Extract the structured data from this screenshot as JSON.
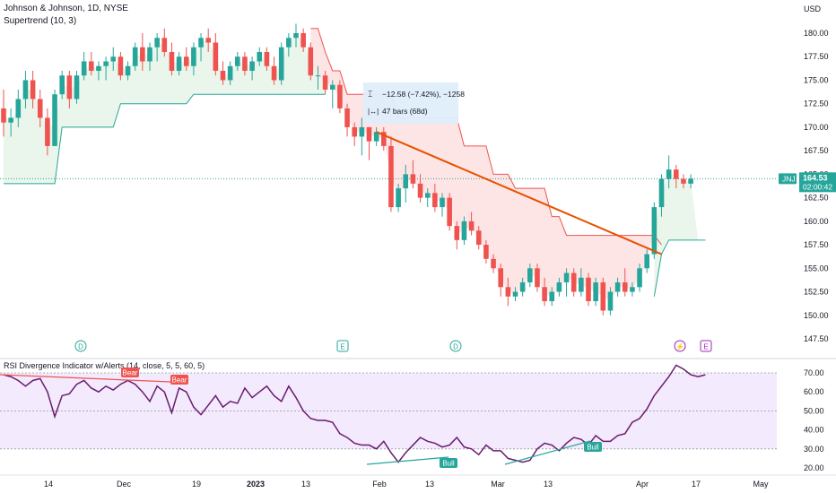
{
  "header": {
    "symbol_line": "Johnson & Johnson, 1D, NYSE",
    "indicator_line": "Supertrend (10, 3)"
  },
  "price_axis": {
    "currency": "USD",
    "ticks": [
      "180.00",
      "177.50",
      "175.00",
      "172.50",
      "170.00",
      "167.50",
      "165.00",
      "162.50",
      "160.00",
      "157.50",
      "155.00",
      "152.50",
      "150.00",
      "147.50"
    ],
    "tick_values": [
      180,
      177.5,
      175,
      172.5,
      170,
      167.5,
      165,
      162.5,
      160,
      157.5,
      155,
      152.5,
      150,
      147.5
    ]
  },
  "last_price": {
    "ticker": "JNJ",
    "price": "164.53",
    "countdown": "02:00:42",
    "value": 164.53
  },
  "measure_tool": {
    "change": "−12.58 (−7.42%), −1258",
    "bars": "47 bars (68d)"
  },
  "events": [
    {
      "type": "dividend",
      "glyph": "D"
    },
    {
      "type": "earnings",
      "glyph": "E"
    },
    {
      "type": "dividend",
      "glyph": "D"
    },
    {
      "type": "split",
      "glyph": "⚡"
    },
    {
      "type": "earnings",
      "glyph": "E"
    }
  ],
  "rsi_panel": {
    "title": "RSI Divergence Indicator w/Alerts (14, close, 5, 5, 60, 5)",
    "ticks": [
      "70.00",
      "60.00",
      "50.00",
      "40.00",
      "30.00",
      "20.00"
    ],
    "tick_values": [
      70,
      60,
      50,
      40,
      30,
      20
    ],
    "labels": [
      {
        "text": "Bear",
        "kind": "bear"
      },
      {
        "text": "Bear",
        "kind": "bear"
      },
      {
        "text": "Bull",
        "kind": "bull"
      },
      {
        "text": "Bull",
        "kind": "bull"
      }
    ]
  },
  "time_axis": {
    "labels": [
      "14",
      "Dec",
      "19",
      "2023",
      "13",
      "Feb",
      "13",
      "Mar",
      "13",
      "Apr",
      "17",
      "May"
    ]
  },
  "colors": {
    "up": "#26a69a",
    "down": "#ef5350",
    "trendline": "#e65100",
    "rsi_line": "#6a1b6e",
    "rsi_band": "#ead9fb",
    "supertrend_up_fill": "#e8f5e9",
    "supertrend_down_fill": "#fde2e2"
  },
  "chart_data": {
    "type": "candlestick",
    "ylim": [
      146,
      183
    ],
    "candles": [
      [
        172,
        174,
        169,
        170.5
      ],
      [
        170.5,
        172,
        169,
        171
      ],
      [
        171,
        174,
        170,
        173
      ],
      [
        173,
        176,
        172,
        175
      ],
      [
        175,
        176,
        172,
        173
      ],
      [
        173,
        174,
        170,
        171
      ],
      [
        171,
        172,
        167,
        168
      ],
      [
        168,
        174,
        168,
        173.5
      ],
      [
        173.5,
        176,
        173,
        175.5
      ],
      [
        175.5,
        176,
        172,
        173
      ],
      [
        173,
        176,
        172.5,
        175.5
      ],
      [
        175.5,
        178,
        175,
        177
      ],
      [
        177,
        178,
        175.5,
        176
      ],
      [
        176,
        177,
        175,
        176.5
      ],
      [
        176.5,
        177.5,
        175,
        177
      ],
      [
        177,
        178.5,
        176,
        177.5
      ],
      [
        177.5,
        178,
        175,
        175.5
      ],
      [
        175.5,
        177,
        175,
        176.5
      ],
      [
        176.5,
        179,
        176,
        178.5
      ],
      [
        178.5,
        180,
        176,
        177
      ],
      [
        177,
        179,
        176,
        178.5
      ],
      [
        178.5,
        180,
        177,
        179.5
      ],
      [
        179.5,
        180.5,
        177.5,
        178
      ],
      [
        178,
        179,
        175.5,
        176
      ],
      [
        176,
        178,
        175.5,
        177.5
      ],
      [
        177.5,
        178.5,
        176,
        176.5
      ],
      [
        176.5,
        179,
        175.5,
        178.5
      ],
      [
        178.5,
        180,
        177,
        179.5
      ],
      [
        179.5,
        180.5,
        178,
        179
      ],
      [
        179,
        180,
        175.5,
        176
      ],
      [
        176,
        177,
        174.5,
        175
      ],
      [
        175,
        177,
        174.5,
        176.5
      ],
      [
        176.5,
        178,
        176,
        177.5
      ],
      [
        177.5,
        178,
        175.5,
        176
      ],
      [
        176,
        177.5,
        175,
        177
      ],
      [
        177,
        178.5,
        176.5,
        178
      ],
      [
        178,
        178.5,
        176,
        176.5
      ],
      [
        176.5,
        177.5,
        174.5,
        175
      ],
      [
        175,
        179,
        174.5,
        178.5
      ],
      [
        178.5,
        180,
        177.5,
        179.5
      ],
      [
        179.5,
        181,
        178.5,
        180
      ],
      [
        180,
        180.5,
        178,
        178.5
      ],
      [
        178.5,
        179,
        175,
        175.5
      ],
      [
        175.5,
        176.5,
        174,
        175.5
      ],
      [
        175.5,
        176,
        173.5,
        174
      ],
      [
        174,
        175,
        172,
        174.5
      ],
      [
        174.5,
        175,
        171.5,
        172
      ],
      [
        172,
        172.5,
        169,
        170
      ],
      [
        170,
        170.5,
        168,
        169
      ],
      [
        169,
        171,
        167,
        170
      ],
      [
        170,
        170,
        166.5,
        168.5
      ],
      [
        168.5,
        170,
        168,
        169.5
      ],
      [
        169.5,
        170,
        167.5,
        168
      ],
      [
        168,
        169,
        161,
        161.5
      ],
      [
        161.5,
        164,
        161,
        163.5
      ],
      [
        163.5,
        166,
        162,
        165
      ],
      [
        165,
        166.5,
        163.5,
        164
      ],
      [
        164,
        165,
        162,
        162.5
      ],
      [
        162.5,
        163.5,
        161.5,
        163
      ],
      [
        163,
        164,
        161,
        161.5
      ],
      [
        161.5,
        163,
        160.5,
        162.5
      ],
      [
        162.5,
        163,
        159,
        159.5
      ],
      [
        159.5,
        160,
        157,
        158
      ],
      [
        158,
        160.5,
        157.5,
        160
      ],
      [
        160,
        161,
        158.5,
        159
      ],
      [
        159,
        159.5,
        157,
        157.5
      ],
      [
        157.5,
        158,
        155.5,
        156
      ],
      [
        156,
        156.5,
        154.5,
        155
      ],
      [
        155,
        155.5,
        152,
        153
      ],
      [
        153,
        154,
        151,
        152
      ],
      [
        152,
        153,
        151.5,
        152.5
      ],
      [
        152.5,
        154,
        152,
        153.5
      ],
      [
        153.5,
        155.5,
        153,
        155
      ],
      [
        155,
        155.5,
        152.5,
        153
      ],
      [
        153,
        154,
        151,
        151.5
      ],
      [
        151.5,
        153,
        151,
        152.5
      ],
      [
        152.5,
        154,
        152,
        153.5
      ],
      [
        153.5,
        155,
        152,
        154.5
      ],
      [
        154.5,
        155,
        152,
        152.5
      ],
      [
        152.5,
        155,
        152,
        154
      ],
      [
        154,
        154.5,
        151,
        151.5
      ],
      [
        151.5,
        154,
        151,
        153.5
      ],
      [
        153.5,
        154,
        150,
        150.5
      ],
      [
        150.5,
        153,
        150,
        152.5
      ],
      [
        152.5,
        154,
        152,
        153.5
      ],
      [
        153.5,
        155,
        152,
        152.5
      ],
      [
        152.5,
        153.5,
        152,
        153
      ],
      [
        153,
        155.5,
        152.5,
        155
      ],
      [
        155,
        157,
        154.5,
        156.5
      ],
      [
        156.5,
        162,
        156,
        161.5
      ],
      [
        161.5,
        165,
        160.5,
        164.5
      ],
      [
        164.5,
        167,
        163.5,
        165.5
      ],
      [
        165.5,
        166,
        163.5,
        164.5
      ],
      [
        164.5,
        165,
        163.5,
        164
      ],
      [
        164,
        165,
        163.5,
        164.53
      ]
    ],
    "supertrend_up_1": [
      164,
      164,
      164,
      164,
      164,
      164,
      164,
      164,
      170,
      170,
      170,
      170,
      170,
      170,
      170,
      170,
      172.5,
      172.5,
      172.5,
      172.5,
      172.5,
      172.5,
      172.5,
      172.5,
      172.5,
      172.5,
      173.5,
      173.5,
      173.5,
      173.5,
      173.5,
      173.5,
      173.5,
      173.5,
      173.5,
      173.5,
      173.5,
      173.5,
      173.5,
      173.5,
      173.5,
      173.5,
      173.5,
      173.5,
      173.5
    ],
    "supertrend_down": [
      180.5,
      180.5,
      178,
      176,
      176,
      173.5,
      173.5,
      173.5,
      173.5,
      173.5,
      173.5,
      173.5,
      171,
      171,
      171,
      171,
      171,
      171,
      171,
      171,
      171,
      168,
      168,
      168,
      168,
      165,
      165,
      165,
      163.5,
      163.5,
      163.5,
      163.5,
      163.5,
      160.5,
      160.5,
      158.5,
      158.5,
      158.5,
      158.5,
      158.5,
      158.5,
      158.5,
      158.5,
      158.5,
      158.5,
      158.5,
      158.5,
      158.5,
      157.5
    ],
    "supertrend_up_2": [
      152,
      156.5,
      158,
      158,
      158,
      158,
      158,
      158
    ],
    "trendline": {
      "from_index": 51,
      "from_price": 169.5,
      "to_index": 90,
      "to_price": 156.5
    },
    "rsi": [
      69,
      68,
      66,
      63,
      66,
      67,
      60,
      47,
      58,
      59,
      64,
      66,
      62,
      60,
      63,
      61,
      64,
      66,
      64,
      60,
      55,
      63,
      60,
      49,
      62,
      60,
      52,
      48,
      53,
      58,
      52,
      55,
      54,
      62,
      57,
      60,
      63,
      58,
      55,
      63,
      57,
      50,
      46,
      45,
      45,
      44,
      38,
      36,
      33,
      32,
      32,
      30,
      34,
      28,
      23,
      28,
      32,
      36,
      34,
      33,
      31,
      32,
      36,
      31,
      30,
      27,
      32,
      29,
      29,
      25,
      24,
      23,
      24,
      30,
      33,
      32,
      29,
      33,
      36,
      35,
      32,
      37,
      34,
      34,
      37,
      38,
      44,
      46,
      51,
      58,
      63,
      68,
      74,
      72,
      69,
      68,
      69
    ]
  }
}
